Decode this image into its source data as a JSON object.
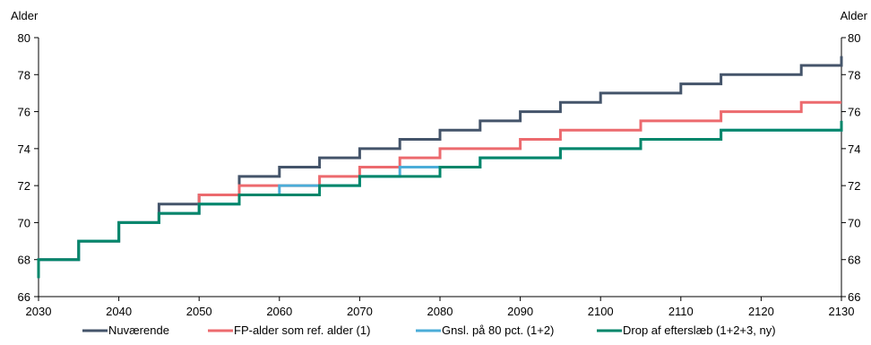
{
  "chart_data": {
    "type": "line",
    "step": true,
    "title": "",
    "ylabel_left": "Alder",
    "ylabel_right": "Alder",
    "xlabel": "",
    "xlim": [
      2030,
      2130
    ],
    "ylim": [
      66,
      80
    ],
    "x_ticks": [
      "2030",
      "2040",
      "2050",
      "2060",
      "2070",
      "2080",
      "2090",
      "2100",
      "2110",
      "2120",
      "2130"
    ],
    "y_ticks": [
      "66",
      "68",
      "70",
      "72",
      "74",
      "76",
      "78",
      "80"
    ],
    "legend_position": "bottom",
    "grid": false,
    "series": [
      {
        "name": "Nuværende",
        "color": "#44546a",
        "points": [
          [
            2030,
            67
          ],
          [
            2030,
            68
          ],
          [
            2035,
            69
          ],
          [
            2040,
            70
          ],
          [
            2045,
            71
          ],
          [
            2050,
            71.5
          ],
          [
            2055,
            72.5
          ],
          [
            2060,
            73
          ],
          [
            2065,
            73.5
          ],
          [
            2070,
            74
          ],
          [
            2075,
            74.5
          ],
          [
            2080,
            75
          ],
          [
            2085,
            75.5
          ],
          [
            2090,
            76
          ],
          [
            2095,
            76.5
          ],
          [
            2100,
            77
          ],
          [
            2110,
            77.5
          ],
          [
            2115,
            78
          ],
          [
            2125,
            78.5
          ],
          [
            2130,
            79
          ]
        ]
      },
      {
        "name": "FP-alder som ref. alder (1)",
        "color": "#ec6a6e",
        "points": [
          [
            2030,
            67
          ],
          [
            2030,
            68
          ],
          [
            2035,
            69
          ],
          [
            2040,
            70
          ],
          [
            2045,
            70.5
          ],
          [
            2050,
            71.5
          ],
          [
            2055,
            72
          ],
          [
            2065,
            72.5
          ],
          [
            2070,
            73
          ],
          [
            2075,
            73.5
          ],
          [
            2080,
            74
          ],
          [
            2090,
            74.5
          ],
          [
            2095,
            75
          ],
          [
            2105,
            75.5
          ],
          [
            2115,
            76
          ],
          [
            2125,
            76.5
          ]
        ]
      },
      {
        "name": "Gnsl. på 80 pct. (1+2)",
        "color": "#4badd8",
        "points": [
          [
            2030,
            67
          ],
          [
            2030,
            68
          ],
          [
            2035,
            69
          ],
          [
            2040,
            70
          ],
          [
            2045,
            70.5
          ],
          [
            2050,
            71
          ],
          [
            2055,
            71.5
          ],
          [
            2060,
            72
          ],
          [
            2065,
            72
          ],
          [
            2070,
            72.5
          ],
          [
            2075,
            73
          ],
          [
            2080,
            73
          ],
          [
            2085,
            73.5
          ],
          [
            2095,
            74
          ],
          [
            2105,
            74.5
          ],
          [
            2115,
            75
          ],
          [
            2130,
            75.5
          ]
        ]
      },
      {
        "name": "Drop af efterslæb (1+2+3, ny)",
        "color": "#00866a",
        "points": [
          [
            2030,
            67
          ],
          [
            2030,
            68
          ],
          [
            2035,
            69
          ],
          [
            2040,
            70
          ],
          [
            2045,
            70.5
          ],
          [
            2050,
            71
          ],
          [
            2055,
            71.5
          ],
          [
            2065,
            72
          ],
          [
            2070,
            72.5
          ],
          [
            2080,
            73
          ],
          [
            2085,
            73.5
          ],
          [
            2095,
            74
          ],
          [
            2105,
            74.5
          ],
          [
            2115,
            75
          ],
          [
            2130,
            75.5
          ]
        ]
      }
    ]
  }
}
